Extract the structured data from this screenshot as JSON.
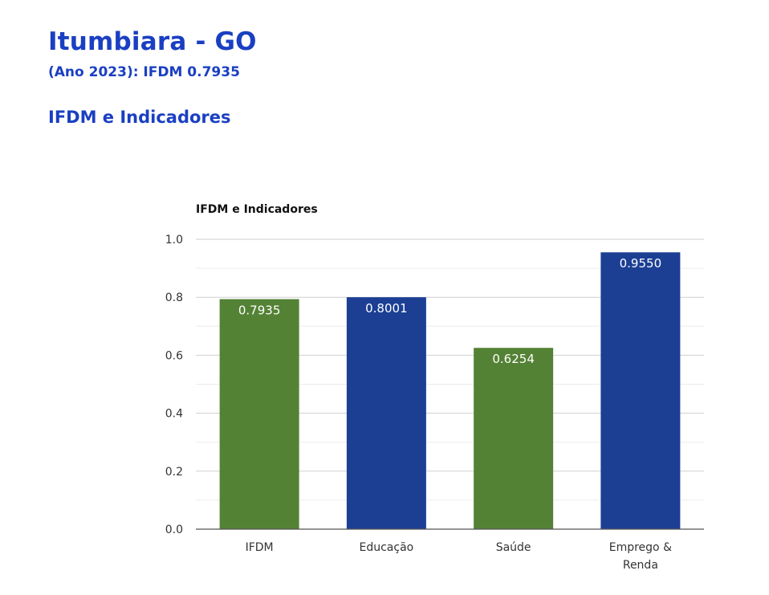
{
  "header": {
    "title": "Itumbiara - GO",
    "subtitle": "(Ano 2023): IFDM 0.7935",
    "section_title": "IFDM e Indicadores"
  },
  "colors": {
    "heading": "#1a3fc2",
    "green": "#548235",
    "blue": "#1c3f94"
  },
  "chart_data": {
    "type": "bar",
    "title": "IFDM e Indicadores",
    "xlabel": "",
    "ylabel": "",
    "categories": [
      "IFDM",
      "Educação",
      "Saúde",
      "Emprego & Renda"
    ],
    "category_lines": [
      [
        "IFDM"
      ],
      [
        "Educação"
      ],
      [
        "Saúde"
      ],
      [
        "Emprego &",
        "Renda"
      ]
    ],
    "values": [
      0.7935,
      0.8001,
      0.6254,
      0.955
    ],
    "data_labels": [
      "0.7935",
      "0.8001",
      "0.6254",
      "0.9550"
    ],
    "bar_colors": [
      "#548235",
      "#1c3f94",
      "#548235",
      "#1c3f94"
    ],
    "ylim": [
      0,
      1
    ],
    "yticks": [
      0,
      0.2,
      0.4,
      0.6,
      0.8,
      1.0
    ],
    "ytick_labels": [
      "0.0",
      "0.2",
      "0.4",
      "0.6",
      "0.8",
      "1.0"
    ],
    "grid": true,
    "legend": "none"
  }
}
